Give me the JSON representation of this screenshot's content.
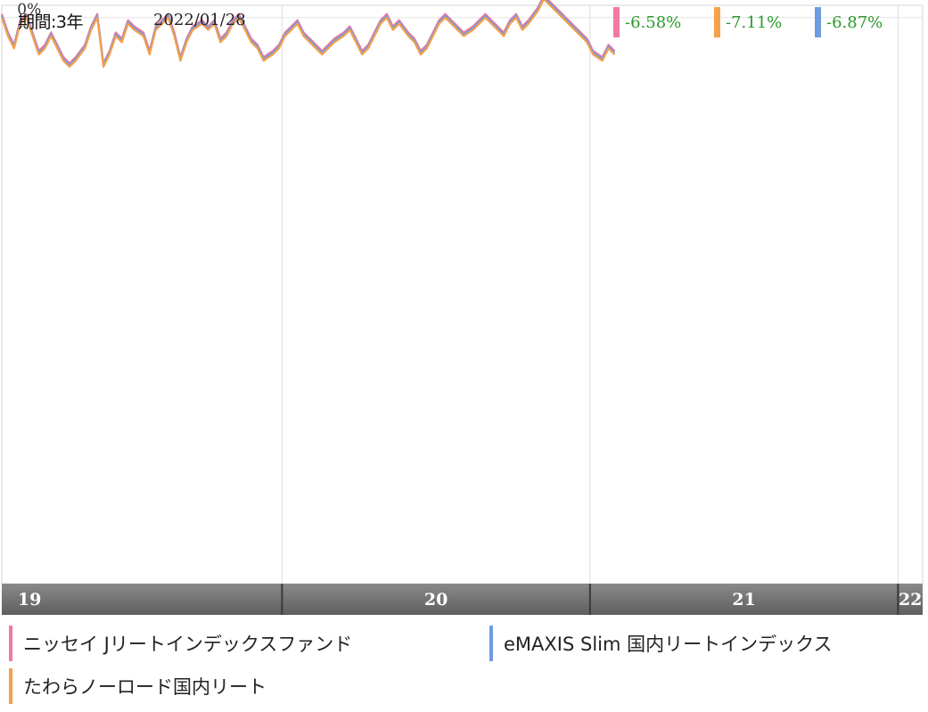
{
  "header": {
    "period": "期間:3年",
    "date": "2022/01/28"
  },
  "performance": [
    {
      "value": "-6.58%",
      "color": "#f07aa3"
    },
    {
      "value": "-7.11%",
      "color": "#f5a04a"
    },
    {
      "value": "-6.87%",
      "color": "#6f9be0"
    }
  ],
  "legend": [
    {
      "label": "ニッセイ Jリートインデックスファンド",
      "color": "#f07aa3"
    },
    {
      "label": "eMAXIS Slim 国内リートインデックス",
      "color": "#6f9be0"
    },
    {
      "label": "たわらノーロード国内リート",
      "color": "#f5a04a"
    }
  ],
  "chart_data": {
    "type": "line",
    "reference_label": "0%",
    "x_ticks": [
      "19",
      "20",
      "21",
      "22"
    ],
    "series": [
      {
        "name": "ニッセイ Jリートインデックスファンド",
        "color": "#f07aa3"
      },
      {
        "name": "eMAXIS Slim 国内リートインデックス",
        "color": "#6f9be0"
      },
      {
        "name": "たわらノーロード国内リート",
        "color": "#f5a04a"
      }
    ],
    "x": [
      2019.09,
      2019.11,
      2019.13,
      2019.15,
      2019.17,
      2019.19,
      2019.21,
      2019.23,
      2019.25,
      2019.27,
      2019.29,
      2019.31,
      2019.33,
      2019.36,
      2019.38,
      2019.4,
      2019.42,
      2019.44,
      2019.46,
      2019.48,
      2019.5,
      2019.52,
      2019.55,
      2019.57,
      2019.59,
      2019.61,
      2019.63,
      2019.65,
      2019.67,
      2019.69,
      2019.71,
      2019.74,
      2019.76,
      2019.78,
      2019.8,
      2019.82,
      2019.84,
      2019.86,
      2019.88,
      2019.9,
      2019.92,
      2019.94,
      2019.97,
      2019.99,
      2020.01,
      2020.03,
      2020.05,
      2020.07,
      2020.09,
      2020.11,
      2020.13,
      2020.15,
      2020.17,
      2020.2,
      2020.22,
      2020.24,
      2020.26,
      2020.28,
      2020.3,
      2020.32,
      2020.34,
      2020.36,
      2020.38,
      2020.41,
      2020.43,
      2020.45,
      2020.47,
      2020.49,
      2020.51,
      2020.53,
      2020.55,
      2020.57,
      2020.59,
      2020.62,
      2020.64,
      2020.66,
      2020.68,
      2020.7,
      2020.72,
      2020.74,
      2020.76,
      2020.78,
      2020.8,
      2020.83,
      2020.85,
      2020.87,
      2020.89,
      2020.91,
      2020.93,
      2020.95,
      2020.97,
      2020.99,
      2021.01,
      2021.04,
      2021.06,
      2021.08
    ],
    "values": [
      0,
      -3,
      -5,
      -1,
      0,
      -3,
      -6,
      -5,
      -3,
      -5,
      -7,
      -8,
      -7,
      -5,
      -2,
      0,
      -8,
      -6,
      -3,
      -4,
      -1,
      -2,
      -3,
      -6,
      -2,
      -1,
      0,
      -3,
      -7,
      -4,
      -2,
      -1,
      -2,
      -1,
      -4,
      -3,
      -1,
      0,
      -2,
      -4,
      -5,
      -7,
      -6,
      -5,
      -3,
      -2,
      -1,
      -3,
      -4,
      -5,
      -6,
      -5,
      -4,
      -3,
      -2,
      -4,
      -6,
      -5,
      -3,
      -1,
      0,
      -2,
      -1,
      -3,
      -4,
      -6,
      -5,
      -3,
      -1,
      0,
      -1,
      -2,
      -3,
      -2,
      -1,
      0,
      -1,
      -2,
      -3,
      -1,
      0,
      -2,
      -1,
      1,
      3,
      2,
      1,
      0,
      -1,
      -2,
      -3,
      -4,
      -6,
      -7,
      -5,
      -6
    ]
  }
}
